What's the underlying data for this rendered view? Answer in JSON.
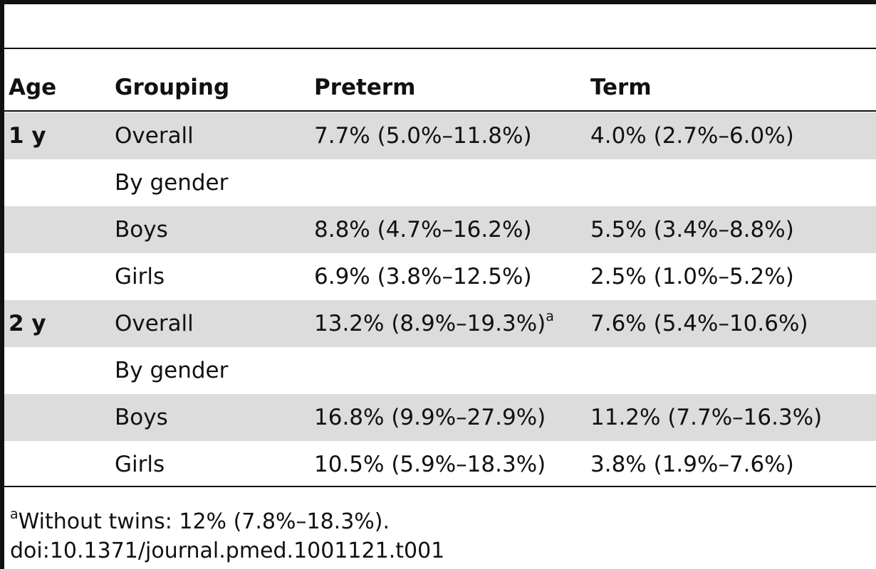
{
  "table": {
    "headers": {
      "age": "Age",
      "grouping": "Grouping",
      "preterm": "Preterm",
      "term": "Term"
    },
    "rows": [
      {
        "age": "1 y",
        "grouping": "Overall",
        "preterm": "7.7% (5.0%–11.8%)",
        "preterm_note": "",
        "term": "4.0% (2.7%–6.0%)"
      },
      {
        "age": "",
        "grouping": "By gender",
        "preterm": "",
        "preterm_note": "",
        "term": ""
      },
      {
        "age": "",
        "grouping": "Boys",
        "preterm": "8.8% (4.7%–16.2%)",
        "preterm_note": "",
        "term": "5.5% (3.4%–8.8%)"
      },
      {
        "age": "",
        "grouping": "Girls",
        "preterm": "6.9% (3.8%–12.5%)",
        "preterm_note": "",
        "term": "2.5% (1.0%–5.2%)"
      },
      {
        "age": "2 y",
        "grouping": "Overall",
        "preterm": "13.2% (8.9%–19.3%)",
        "preterm_note": "a",
        "term": "7.6% (5.4%–10.6%)"
      },
      {
        "age": "",
        "grouping": "By gender",
        "preterm": "",
        "preterm_note": "",
        "term": ""
      },
      {
        "age": "",
        "grouping": "Boys",
        "preterm": "16.8% (9.9%–27.9%)",
        "preterm_note": "",
        "term": "11.2% (7.7%–16.3%)"
      },
      {
        "age": "",
        "grouping": "Girls",
        "preterm": "10.5% (5.9%–18.3%)",
        "preterm_note": "",
        "term": "3.8% (1.9%–7.6%)"
      }
    ]
  },
  "footnote": {
    "marker": "a",
    "text": "Without twins: 12% (7.8%–18.3%)."
  },
  "doi": "doi:10.1371/journal.pmed.1001121.t001"
}
